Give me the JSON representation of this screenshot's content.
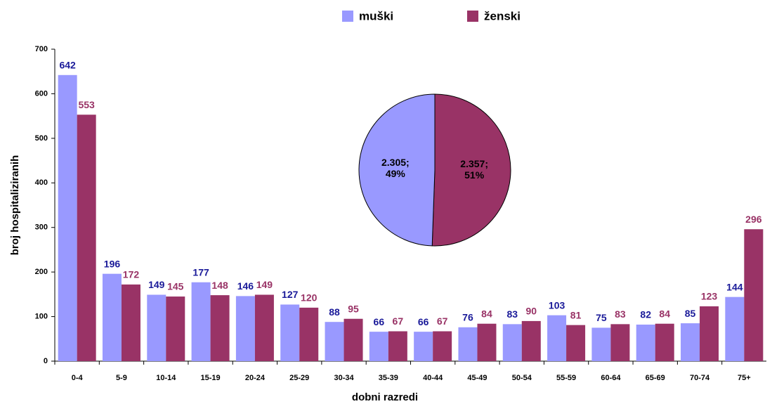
{
  "chart_data": [
    {
      "type": "bar",
      "x_label": "dobni razredi",
      "y_label": "broj hospitaliziranih",
      "categories": [
        "0-4",
        "5-9",
        "10-14",
        "15-19",
        "20-24",
        "25-29",
        "30-34",
        "35-39",
        "40-44",
        "45-49",
        "50-54",
        "55-59",
        "60-64",
        "65-69",
        "70-74",
        "75+"
      ],
      "series": [
        {
          "name": "muški",
          "color": "#9999ff",
          "label_color": "#1a1a99",
          "values": [
            642,
            196,
            149,
            177,
            146,
            127,
            88,
            66,
            66,
            76,
            83,
            103,
            75,
            82,
            85,
            144
          ]
        },
        {
          "name": "ženski",
          "color": "#993366",
          "label_color": "#993366",
          "values": [
            553,
            172,
            145,
            148,
            149,
            120,
            95,
            67,
            67,
            84,
            90,
            81,
            83,
            84,
            123,
            296
          ]
        }
      ],
      "ylim": [
        0,
        700
      ],
      "yticks": [
        0,
        100,
        200,
        300,
        400,
        500,
        600,
        700
      ],
      "grid": false,
      "legend": "top"
    },
    {
      "type": "pie",
      "values": [
        2305,
        2357
      ],
      "value_labels": [
        "2.305; 49%",
        "2.357; 51%"
      ],
      "colors": [
        "#9999ff",
        "#993366"
      ]
    }
  ]
}
